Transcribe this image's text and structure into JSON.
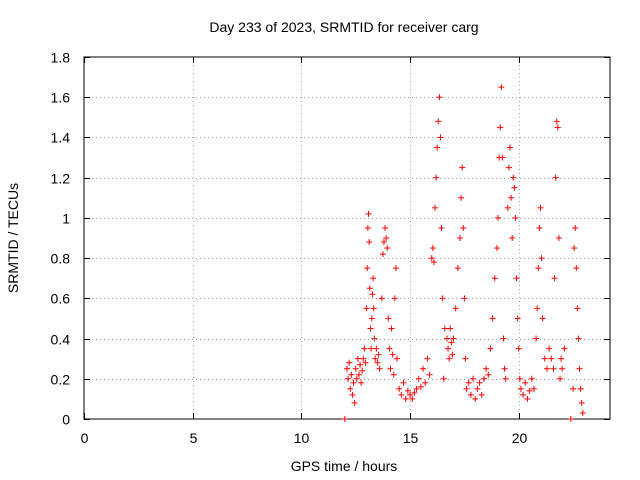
{
  "chart_data": {
    "type": "scatter",
    "title": "Day 233 of 2023, SRMTID for receiver carg",
    "xlabel": "GPS time / hours",
    "ylabel": "SRMTID / TECUs",
    "xlim": [
      0,
      24.2
    ],
    "ylim": [
      0,
      1.8
    ],
    "xticks": [
      0,
      5,
      10,
      15,
      20
    ],
    "xtick_labels": [
      "0",
      "5",
      "10",
      "15",
      "20"
    ],
    "yticks": [
      0,
      0.2,
      0.4,
      0.6,
      0.8,
      1.0,
      1.2,
      1.4,
      1.6,
      1.8
    ],
    "ytick_labels": [
      "0",
      "0.2",
      "0.4",
      "0.6",
      "0.8",
      "1",
      "1.2",
      "1.4",
      "1.6",
      "1.8"
    ],
    "grid": true,
    "marker": "+",
    "marker_color": "#ff0000",
    "series": [
      {
        "name": "SRMTID",
        "points": [
          [
            12.0,
            0.0
          ],
          [
            22.4,
            0.0
          ],
          [
            12.1,
            0.25
          ],
          [
            12.15,
            0.2
          ],
          [
            12.2,
            0.28
          ],
          [
            12.25,
            0.15
          ],
          [
            12.3,
            0.22
          ],
          [
            12.35,
            0.12
          ],
          [
            12.4,
            0.18
          ],
          [
            12.45,
            0.08
          ],
          [
            12.5,
            0.25
          ],
          [
            12.55,
            0.2
          ],
          [
            12.6,
            0.3
          ],
          [
            12.65,
            0.22
          ],
          [
            12.7,
            0.27
          ],
          [
            12.75,
            0.18
          ],
          [
            12.8,
            0.24
          ],
          [
            12.85,
            0.3
          ],
          [
            12.9,
            0.35
          ],
          [
            12.95,
            0.28
          ],
          [
            13.0,
            0.55
          ],
          [
            13.03,
            0.75
          ],
          [
            13.06,
            0.95
          ],
          [
            13.09,
            1.02
          ],
          [
            13.12,
            0.88
          ],
          [
            13.15,
            0.65
          ],
          [
            13.18,
            0.45
          ],
          [
            13.21,
            0.35
          ],
          [
            13.24,
            0.5
          ],
          [
            13.27,
            0.62
          ],
          [
            13.3,
            0.7
          ],
          [
            13.33,
            0.55
          ],
          [
            13.36,
            0.4
          ],
          [
            13.4,
            0.3
          ],
          [
            13.45,
            0.35
          ],
          [
            13.5,
            0.28
          ],
          [
            13.55,
            0.32
          ],
          [
            13.6,
            0.25
          ],
          [
            13.7,
            0.6
          ],
          [
            13.75,
            0.82
          ],
          [
            13.8,
            0.88
          ],
          [
            13.85,
            0.95
          ],
          [
            13.9,
            0.9
          ],
          [
            13.95,
            0.85
          ],
          [
            14.0,
            0.5
          ],
          [
            14.05,
            0.35
          ],
          [
            14.1,
            0.25
          ],
          [
            14.15,
            0.45
          ],
          [
            14.2,
            0.32
          ],
          [
            14.25,
            0.22
          ],
          [
            14.3,
            0.6
          ],
          [
            14.35,
            0.75
          ],
          [
            14.4,
            0.3
          ],
          [
            14.5,
            0.15
          ],
          [
            14.6,
            0.12
          ],
          [
            14.7,
            0.18
          ],
          [
            14.8,
            0.1
          ],
          [
            14.9,
            0.14
          ],
          [
            15.0,
            0.12
          ],
          [
            15.1,
            0.1
          ],
          [
            15.2,
            0.13
          ],
          [
            15.3,
            0.15
          ],
          [
            15.4,
            0.2
          ],
          [
            15.5,
            0.16
          ],
          [
            15.6,
            0.25
          ],
          [
            15.7,
            0.18
          ],
          [
            15.8,
            0.3
          ],
          [
            15.9,
            0.22
          ],
          [
            16.0,
            0.8
          ],
          [
            16.05,
            0.85
          ],
          [
            16.1,
            0.78
          ],
          [
            16.15,
            1.05
          ],
          [
            16.2,
            1.2
          ],
          [
            16.25,
            1.35
          ],
          [
            16.3,
            1.48
          ],
          [
            16.35,
            1.6
          ],
          [
            16.4,
            1.4
          ],
          [
            16.45,
            0.95
          ],
          [
            16.5,
            0.6
          ],
          [
            16.55,
            0.2
          ],
          [
            16.6,
            0.45
          ],
          [
            16.7,
            0.4
          ],
          [
            16.75,
            0.35
          ],
          [
            16.8,
            0.3
          ],
          [
            16.85,
            0.45
          ],
          [
            16.9,
            0.38
          ],
          [
            16.95,
            0.32
          ],
          [
            17.0,
            0.4
          ],
          [
            17.1,
            0.55
          ],
          [
            17.2,
            0.75
          ],
          [
            17.3,
            0.9
          ],
          [
            17.35,
            1.1
          ],
          [
            17.4,
            1.25
          ],
          [
            17.45,
            0.95
          ],
          [
            17.5,
            0.6
          ],
          [
            17.55,
            0.3
          ],
          [
            17.6,
            0.15
          ],
          [
            17.7,
            0.18
          ],
          [
            17.8,
            0.12
          ],
          [
            17.9,
            0.2
          ],
          [
            18.0,
            0.1
          ],
          [
            18.1,
            0.15
          ],
          [
            18.2,
            0.18
          ],
          [
            18.3,
            0.12
          ],
          [
            18.4,
            0.2
          ],
          [
            18.5,
            0.25
          ],
          [
            18.6,
            0.22
          ],
          [
            18.7,
            0.35
          ],
          [
            18.8,
            0.5
          ],
          [
            18.9,
            0.7
          ],
          [
            19.0,
            0.85
          ],
          [
            19.05,
            1.0
          ],
          [
            19.1,
            1.3
          ],
          [
            19.15,
            1.45
          ],
          [
            19.2,
            1.65
          ],
          [
            19.25,
            1.3
          ],
          [
            19.3,
            0.4
          ],
          [
            19.35,
            0.25
          ],
          [
            19.4,
            0.2
          ],
          [
            19.5,
            1.05
          ],
          [
            19.55,
            1.25
          ],
          [
            19.6,
            1.35
          ],
          [
            19.65,
            1.1
          ],
          [
            19.7,
            0.9
          ],
          [
            19.75,
            1.2
          ],
          [
            19.8,
            1.15
          ],
          [
            19.85,
            1.0
          ],
          [
            19.9,
            0.7
          ],
          [
            19.95,
            0.5
          ],
          [
            20.0,
            0.35
          ],
          [
            20.05,
            0.2
          ],
          [
            20.1,
            0.15
          ],
          [
            20.2,
            0.12
          ],
          [
            20.3,
            0.18
          ],
          [
            20.4,
            0.1
          ],
          [
            20.5,
            0.14
          ],
          [
            20.6,
            0.2
          ],
          [
            20.7,
            0.15
          ],
          [
            20.8,
            0.4
          ],
          [
            20.85,
            0.55
          ],
          [
            20.9,
            0.75
          ],
          [
            20.95,
            0.95
          ],
          [
            21.0,
            1.05
          ],
          [
            21.05,
            0.8
          ],
          [
            21.1,
            0.5
          ],
          [
            21.2,
            0.3
          ],
          [
            21.3,
            0.25
          ],
          [
            21.4,
            0.35
          ],
          [
            21.5,
            0.3
          ],
          [
            21.6,
            0.25
          ],
          [
            21.65,
            0.7
          ],
          [
            21.7,
            1.2
          ],
          [
            21.75,
            1.48
          ],
          [
            21.8,
            1.45
          ],
          [
            21.85,
            0.9
          ],
          [
            21.9,
            0.2
          ],
          [
            21.95,
            0.3
          ],
          [
            22.0,
            0.25
          ],
          [
            22.1,
            0.35
          ],
          [
            22.5,
            0.15
          ],
          [
            22.55,
            0.85
          ],
          [
            22.6,
            0.95
          ],
          [
            22.65,
            0.75
          ],
          [
            22.7,
            0.55
          ],
          [
            22.75,
            0.4
          ],
          [
            22.8,
            0.25
          ],
          [
            22.85,
            0.15
          ],
          [
            22.9,
            0.08
          ],
          [
            22.95,
            0.03
          ]
        ]
      }
    ]
  }
}
